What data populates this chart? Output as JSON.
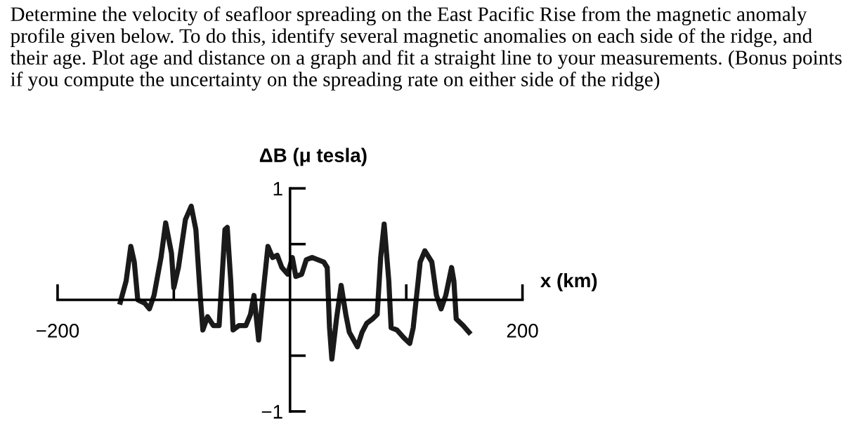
{
  "chart_data": {
    "type": "line",
    "title": "Determine the velocity of seafloor spreading on the East Pacific Rise from the magnetic anomaly profile given below. To do this, identify several magnetic anomalies on each side of the ridge, and their age. Plot age and distance on a graph and fit a straight line to your measurements. (Bonus points if you compute the uncertainty on the spreading rate on either side of the ridge)",
    "xlabel": "x (km)",
    "ylabel": "ΔB (μ tesla)",
    "x": [
      -146,
      -141,
      -137,
      -134,
      -131,
      -125,
      -121,
      -117,
      -111,
      -107,
      -102,
      -100,
      -96,
      -90,
      -85,
      -81,
      -77,
      -75,
      -71,
      -66,
      -61,
      -56,
      -54,
      -51,
      -49,
      -44,
      -38,
      -34,
      -31,
      -27,
      -23,
      -19,
      -15,
      -11,
      -7,
      -2,
      2,
      5,
      10,
      14,
      19,
      29,
      32,
      34,
      36,
      40,
      44,
      48,
      51,
      58,
      62,
      66,
      71,
      75,
      78,
      81,
      85,
      87,
      92,
      98,
      103,
      106,
      112,
      116,
      122,
      126,
      130,
      134,
      139,
      141,
      143,
      149,
      154
    ],
    "series": [
      {
        "color": "#1a1a1a",
        "values": [
          -0.02,
          0.17,
          0.48,
          0.34,
          0,
          -0.03,
          -0.08,
          0.04,
          0.38,
          0.69,
          0.42,
          0.11,
          0.29,
          0.72,
          0.84,
          0.63,
          0,
          -0.27,
          -0.15,
          -0.23,
          -0.23,
          0.63,
          0.65,
          0.17,
          -0.27,
          -0.23,
          -0.23,
          -0.13,
          0.04,
          -0.36,
          0.08,
          0.48,
          0.38,
          0.4,
          0.29,
          0.23,
          0.38,
          0.21,
          0.23,
          0.36,
          0.38,
          0.34,
          0.29,
          -0.25,
          -0.53,
          -0.17,
          0.13,
          -0.13,
          -0.29,
          -0.42,
          -0.29,
          -0.21,
          -0.17,
          -0.13,
          0.38,
          0.68,
          0.17,
          -0.25,
          -0.27,
          -0.34,
          -0.39,
          -0.25,
          0.34,
          0.44,
          0.34,
          0.04,
          -0.08,
          0.04,
          0.29,
          0.17,
          -0.17,
          -0.23,
          -0.29
        ]
      }
    ],
    "xlim": [
      -200,
      200
    ],
    "ylim": [
      -1,
      1
    ],
    "xticks": [
      {
        "value": -200,
        "label": "−200"
      },
      {
        "value": -100,
        "label": null
      },
      {
        "value": 100,
        "label": null
      },
      200
    ],
    "yticks": [
      {
        "value": -1,
        "label": "−1"
      },
      {
        "value": -0.5,
        "label": null
      },
      {
        "value": 0.5,
        "label": null
      },
      1
    ]
  }
}
